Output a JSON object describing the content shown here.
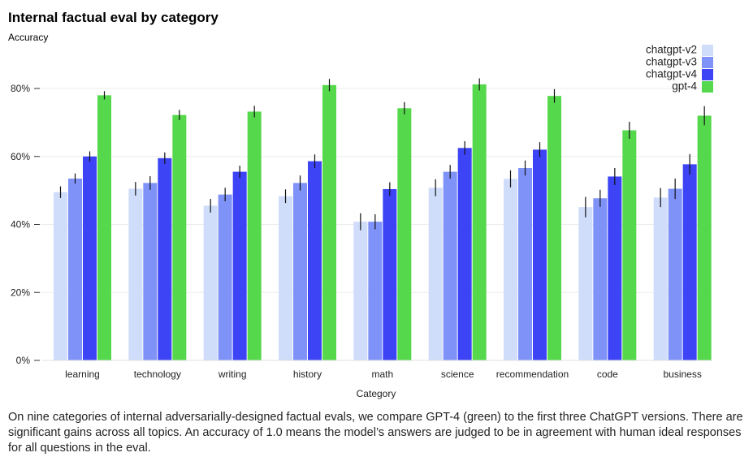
{
  "chart_data": {
    "type": "bar",
    "title": "Internal factual eval by category",
    "ylabel": "Accuracy",
    "xlabel": "Category",
    "ylim": [
      0,
      0.8
    ],
    "yticks": [
      0,
      0.2,
      0.4,
      0.6,
      0.8
    ],
    "ytick_labels": [
      "0%",
      "20%",
      "40%",
      "60%",
      "80%"
    ],
    "grid": true,
    "legend_position": "top-right",
    "categories": [
      "learning",
      "technology",
      "writing",
      "history",
      "math",
      "science",
      "recommendation",
      "code",
      "business"
    ],
    "series": [
      {
        "name": "chatgpt-v2",
        "color": "#cfdcfa",
        "values": [
          0.495,
          0.505,
          0.455,
          0.483,
          0.408,
          0.508,
          0.534,
          0.451,
          0.479
        ],
        "errors": [
          0.017,
          0.02,
          0.02,
          0.02,
          0.025,
          0.025,
          0.025,
          0.03,
          0.028
        ]
      },
      {
        "name": "chatgpt-v3",
        "color": "#7e92f8",
        "values": [
          0.535,
          0.522,
          0.488,
          0.522,
          0.408,
          0.555,
          0.566,
          0.477,
          0.505
        ],
        "errors": [
          0.015,
          0.02,
          0.02,
          0.022,
          0.022,
          0.02,
          0.022,
          0.025,
          0.03
        ]
      },
      {
        "name": "chatgpt-v4",
        "color": "#3c44f5",
        "values": [
          0.6,
          0.595,
          0.555,
          0.586,
          0.504,
          0.625,
          0.62,
          0.541,
          0.577
        ],
        "errors": [
          0.015,
          0.017,
          0.018,
          0.02,
          0.02,
          0.02,
          0.022,
          0.025,
          0.03
        ]
      },
      {
        "name": "gpt-4",
        "color": "#55d84b",
        "values": [
          0.78,
          0.722,
          0.732,
          0.81,
          0.742,
          0.812,
          0.778,
          0.677,
          0.72
        ],
        "errors": [
          0.012,
          0.015,
          0.017,
          0.018,
          0.018,
          0.018,
          0.02,
          0.025,
          0.028
        ]
      }
    ]
  },
  "caption": "On nine categories of internal adversarially-designed factual evals, we compare GPT-4 (green) to the first three ChatGPT versions. There are significant gains across all topics. An accuracy of 1.0 means the model’s answers are judged to be in agreement with human ideal responses for all questions in the eval."
}
